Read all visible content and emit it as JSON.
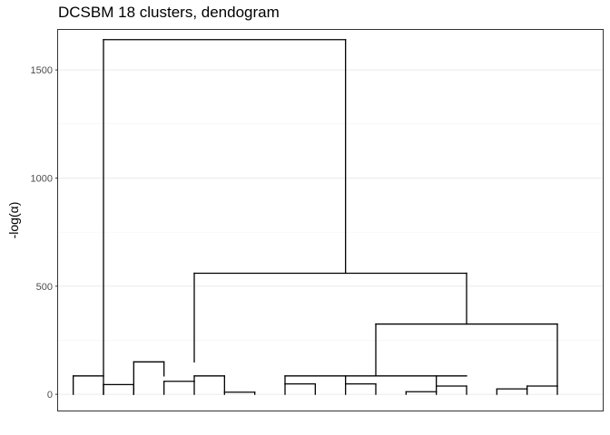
{
  "chart_data": {
    "type": "dendrogram",
    "title": "DCSBM 18 clusters, dendogram",
    "xlabel": "",
    "ylabel": "-log(α)",
    "ylim": [
      -75,
      1685
    ],
    "yticks": [
      0,
      500,
      1000,
      1500
    ],
    "xlim": [
      0.5,
      18.5
    ],
    "grid": "horizontal",
    "merges": [
      {
        "left": [
          1
        ],
        "right": [
          2
        ],
        "height": 85,
        "segments": [
          [
            1,
            0,
            1,
            85
          ],
          [
            2,
            0,
            2,
            85
          ],
          [
            1,
            85,
            2,
            85
          ]
        ]
      },
      {
        "left": [
          3
        ],
        "right": [
          4
        ],
        "height": 45,
        "segments": [
          [
            2,
            0,
            2,
            45
          ],
          [
            3,
            0,
            3,
            45
          ],
          [
            2,
            45,
            3,
            45
          ]
        ]
      },
      {
        "left": [
          6
        ],
        "right": [
          7
        ],
        "height": 10,
        "segments": [
          [
            6,
            0,
            6,
            10
          ],
          [
            7,
            0,
            7,
            10
          ],
          [
            6,
            10,
            7,
            10
          ]
        ]
      },
      {
        "left": [
          4
        ],
        "right": [
          5
        ],
        "height": 60,
        "segments": [
          [
            4,
            0,
            4,
            60
          ],
          [
            5,
            0,
            5,
            60
          ],
          [
            4,
            60,
            5,
            60
          ]
        ]
      },
      {
        "left": [
          5
        ],
        "right": [
          6
        ],
        "height": 85,
        "segments": [
          [
            5,
            60,
            5,
            85
          ],
          [
            6,
            10,
            6,
            85
          ],
          [
            5,
            85,
            6,
            85
          ]
        ]
      },
      {
        "left": [
          3
        ],
        "right": [
          4
        ],
        "height": 150,
        "segments": [
          [
            3,
            0,
            3,
            150
          ],
          [
            4,
            85,
            4,
            150
          ],
          [
            3,
            150,
            4,
            150
          ]
        ]
      },
      {
        "left": [
          8
        ],
        "right": [
          9
        ],
        "height": 48,
        "segments": [
          [
            8,
            0,
            8,
            48
          ],
          [
            9,
            0,
            9,
            48
          ],
          [
            8,
            48,
            9,
            48
          ]
        ]
      },
      {
        "left": [
          10
        ],
        "right": [
          11
        ],
        "height": 48,
        "segments": [
          [
            10,
            0,
            10,
            48
          ],
          [
            11,
            0,
            11,
            48
          ],
          [
            10,
            48,
            11,
            48
          ]
        ]
      },
      {
        "left": [
          12
        ],
        "right": [
          13
        ],
        "height": 12,
        "segments": [
          [
            12,
            0,
            12,
            12
          ],
          [
            13,
            0,
            13,
            12
          ],
          [
            12,
            12,
            13,
            12
          ]
        ]
      },
      {
        "left": [
          13
        ],
        "right": [
          14
        ],
        "height": 38,
        "segments": [
          [
            13,
            12,
            13,
            38
          ],
          [
            14,
            0,
            14,
            38
          ],
          [
            13,
            38,
            14,
            38
          ]
        ]
      },
      {
        "left": [
          8
        ],
        "right": [
          11
        ],
        "height": 85,
        "segments": [
          [
            8,
            48,
            8,
            85
          ],
          [
            10,
            48,
            10,
            85
          ],
          [
            8,
            85,
            11,
            85
          ]
        ]
      },
      {
        "left": [
          11
        ],
        "right": [
          14
        ],
        "height": 85,
        "segments": [
          [
            11,
            85,
            14,
            85
          ],
          [
            13,
            38,
            13,
            85
          ]
        ]
      },
      {
        "left": [
          15
        ],
        "right": [
          16
        ],
        "height": 25,
        "segments": [
          [
            15,
            0,
            15,
            25
          ],
          [
            16,
            0,
            16,
            25
          ],
          [
            15,
            25,
            16,
            25
          ]
        ]
      },
      {
        "left": [
          16
        ],
        "right": [
          17
        ],
        "height": 38,
        "segments": [
          [
            16,
            25,
            16,
            38
          ],
          [
            17,
            0,
            17,
            38
          ],
          [
            16,
            38,
            17,
            38
          ]
        ]
      },
      {
        "left": [
          11
        ],
        "right": [
          17
        ],
        "height": 325,
        "segments": [
          [
            11,
            85,
            11,
            325
          ],
          [
            17,
            38,
            17,
            325
          ],
          [
            11,
            325,
            17,
            325
          ]
        ]
      },
      {
        "left": [
          3
        ],
        "right": [
          14
        ],
        "height": 560,
        "segments": [
          [
            5,
            150,
            5,
            560
          ],
          [
            14,
            325,
            14,
            560
          ],
          [
            5,
            560,
            14,
            560
          ]
        ]
      },
      {
        "left": [
          2
        ],
        "right": [
          10
        ],
        "height": 1640,
        "segments": [
          [
            2,
            85,
            2,
            1640
          ],
          [
            10,
            560,
            10,
            1640
          ],
          [
            2,
            1640,
            10,
            1640
          ]
        ]
      }
    ]
  }
}
